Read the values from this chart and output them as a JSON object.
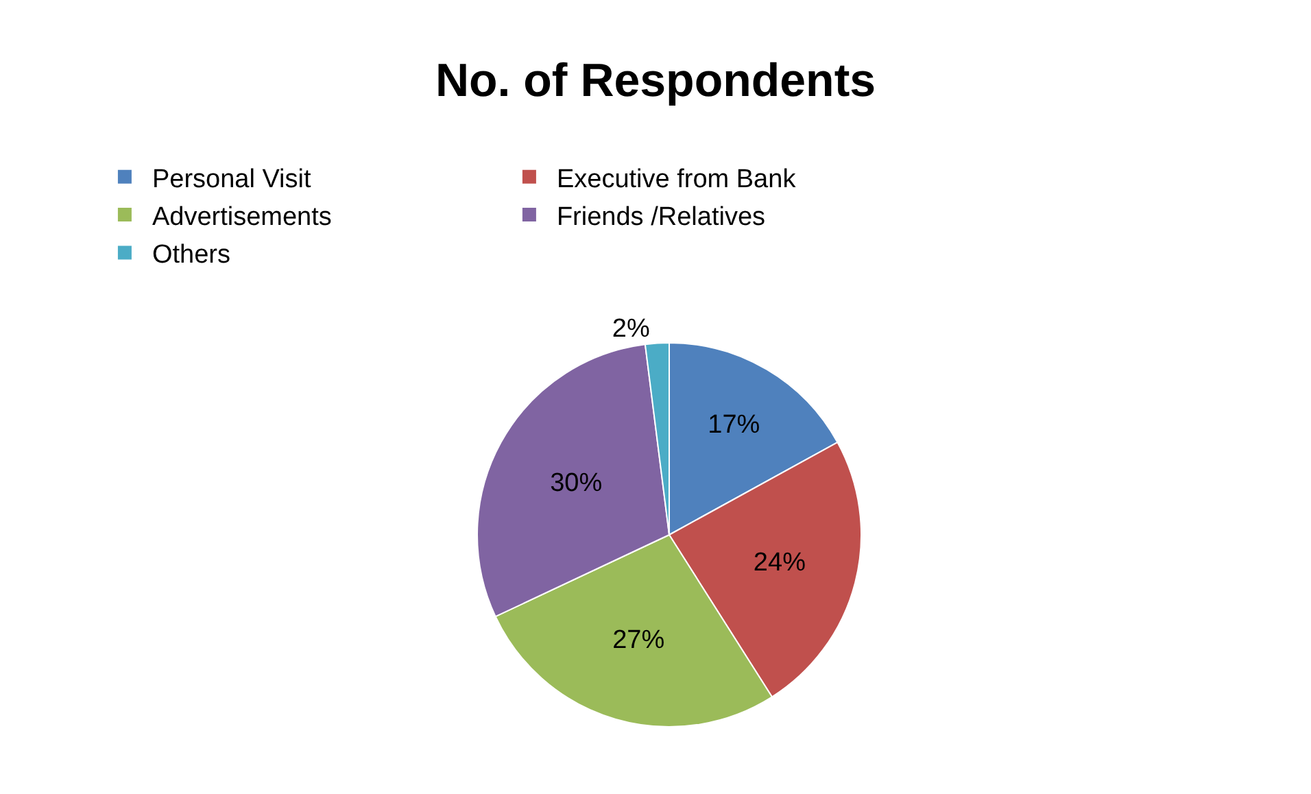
{
  "chart_data": {
    "type": "pie",
    "title": "No. of Respondents",
    "categories": [
      "Personal Visit",
      "Executive from Bank",
      "Advertisements",
      "Friends /Relatives",
      "Others"
    ],
    "values": [
      17,
      24,
      27,
      30,
      2
    ],
    "value_labels": [
      "17%",
      "24%",
      "27%",
      "30%",
      "2%"
    ],
    "colors": [
      "#4f81bd",
      "#c0504d",
      "#9bbb59",
      "#8064a2",
      "#4bacc6"
    ],
    "legend": "top"
  }
}
